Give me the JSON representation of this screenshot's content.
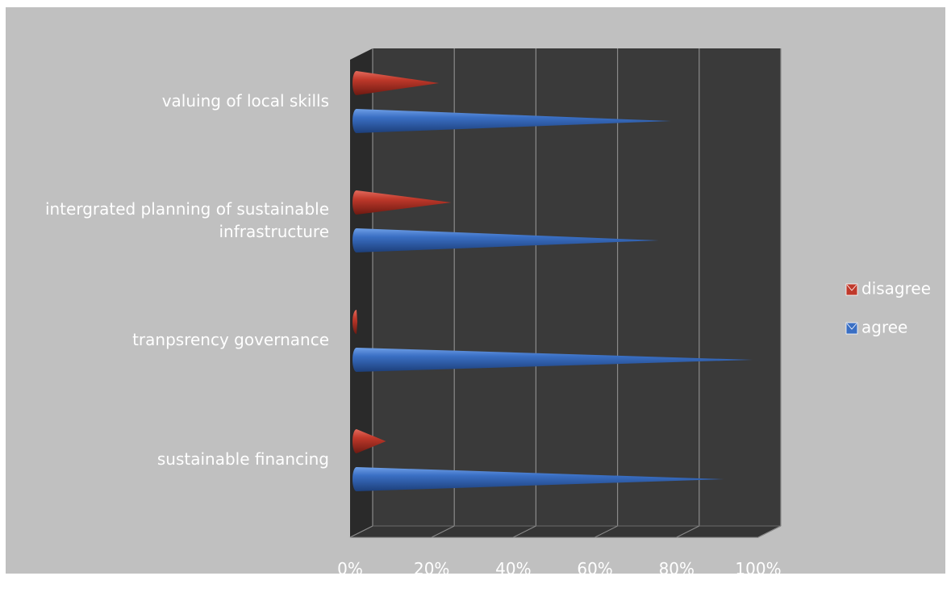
{
  "chart_data": {
    "type": "bar",
    "style": "3d-cone",
    "orientation": "horizontal",
    "categories": [
      "valuing of local skills",
      "intergrated planning of sustainable infrastructure",
      "tranpsrency governance",
      "sustainable financing"
    ],
    "series": [
      {
        "name": "disagree",
        "color": "#c0392b",
        "values": [
          0.21,
          0.24,
          0.01,
          0.08
        ]
      },
      {
        "name": "agree",
        "color": "#3a6fc4",
        "values": [
          0.79,
          0.76,
          0.99,
          0.92
        ]
      }
    ],
    "xlim": [
      0,
      1
    ],
    "x_ticks": [
      "0%",
      "20%",
      "40%",
      "60%",
      "80%",
      "100%"
    ],
    "grid": true,
    "legend_position": "right",
    "background": "#c0c0c0",
    "plot_background": "#3a3a3a"
  }
}
